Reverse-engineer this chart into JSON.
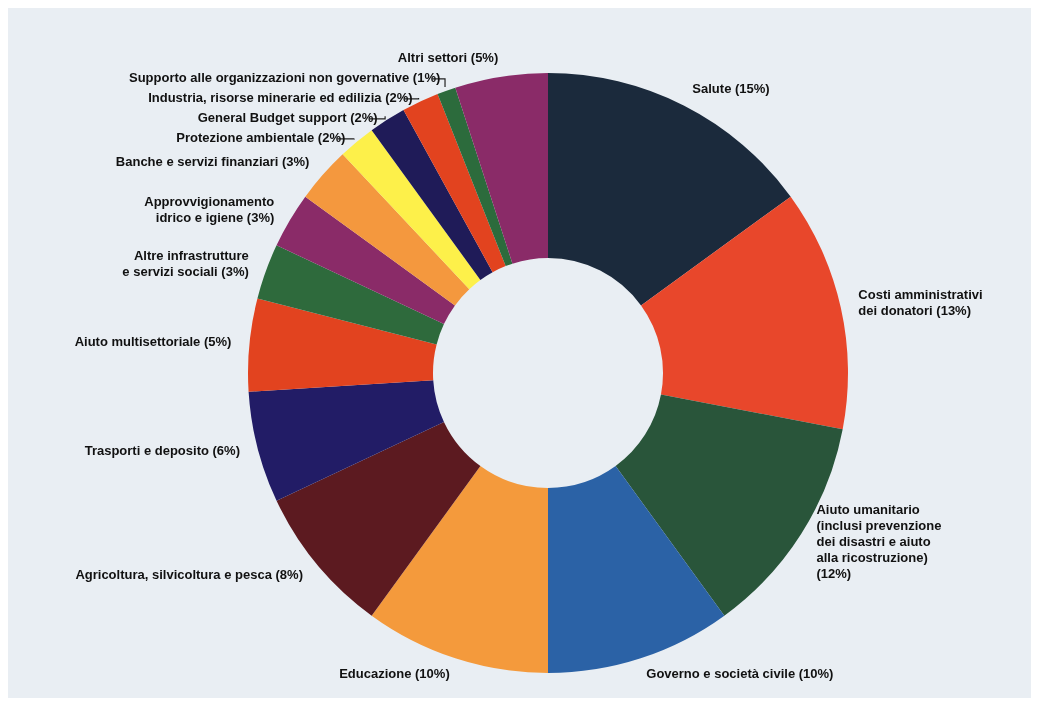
{
  "chart_data": {
    "type": "donut",
    "categories": [
      "Salute (15%)",
      "Costi amministrativi\ndei donatori (13%)",
      "Aiuto umanitario\n(inclusi prevenzione\ndei disastri e aiuto\nalla ricostruzione)\n(12%)",
      "Governo e società civile (10%)",
      "Educazione (10%)",
      "Agricoltura, silvicoltura e pesca (8%)",
      "Trasporti e deposito (6%)",
      "Aiuto multisettoriale (5%)",
      "Altre infrastrutture\ne servizi sociali (3%)",
      "Approvvigionamento\nidrico e igiene (3%)",
      "Banche e servizi finanziari (3%)",
      "Protezione ambientale (2%)",
      "General Budget support (2%)",
      "Industria, risorse minerarie ed edilizia (2%)",
      "Supporto alle organizzazioni non governative (1%)",
      "Altri settori (5%)"
    ],
    "values": [
      15,
      13,
      12,
      10,
      10,
      8,
      6,
      5,
      3,
      3,
      3,
      2,
      2,
      2,
      1,
      5
    ],
    "colors": [
      "#1b2a3c",
      "#e8472b",
      "#29553a",
      "#2b62a6",
      "#f49a3c",
      "#5c1a20",
      "#221c66",
      "#e2431f",
      "#2e6a3c",
      "#8a2b68",
      "#f4983e",
      "#fdf04a",
      "#1f1b58",
      "#e2431f",
      "#2c6b3c",
      "#8a2b68"
    ]
  }
}
